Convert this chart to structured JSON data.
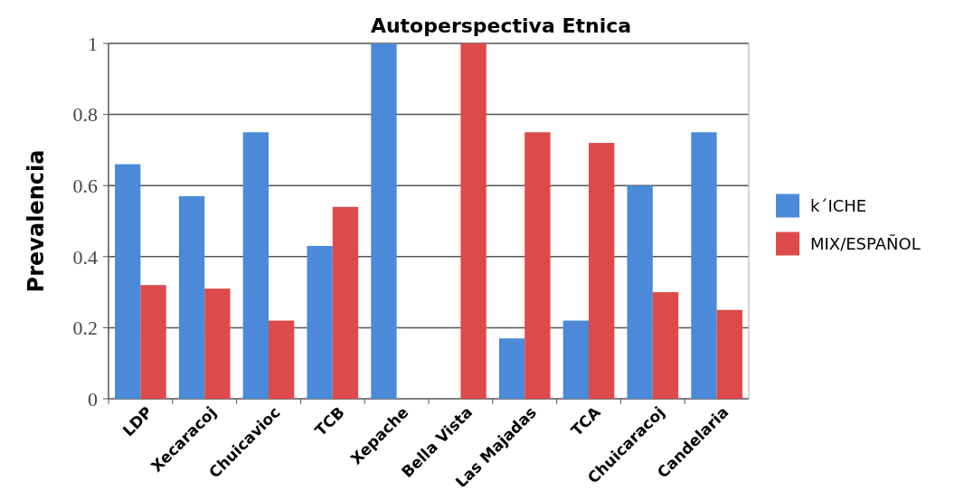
{
  "chart_data": {
    "type": "bar",
    "title": "Autoperspectiva Etnica",
    "ylabel": "Prevalencia",
    "categories": [
      "LDP",
      "Xecaracoj",
      "Chuicavioc",
      "TCB",
      "Xepache",
      "Bella Vista",
      "Las Majadas",
      "TCA",
      "Chuicaracoj",
      "Candelaria"
    ],
    "series": [
      {
        "name": "k´ICHE",
        "color": "#4a8ad8",
        "values": [
          0.66,
          0.57,
          0.75,
          0.43,
          1,
          0,
          0.17,
          0.22,
          0.6,
          0.75
        ]
      },
      {
        "name": "MIX/ESPAÑOL",
        "color": "#dc4a4a",
        "values": [
          0.32,
          0.31,
          0.22,
          0.54,
          0,
          1,
          0.75,
          0.72,
          0.3,
          0.25
        ]
      }
    ],
    "ylim": [
      0,
      1
    ],
    "yticks": [
      0,
      0.2,
      0.4,
      0.6,
      0.8,
      1
    ],
    "grid": "y",
    "legend": "right"
  }
}
